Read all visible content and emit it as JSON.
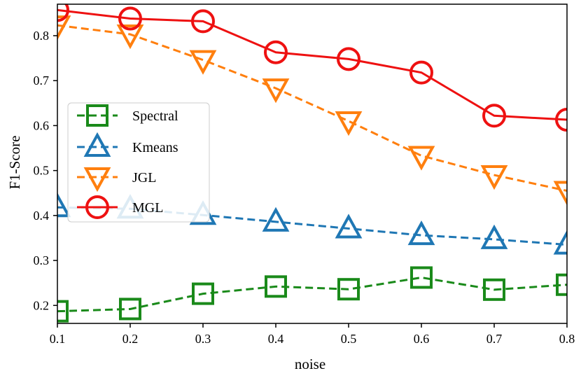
{
  "chart_data": {
    "type": "line",
    "title": "",
    "xlabel": "noise",
    "ylabel": "F1-Score",
    "x": [
      0.1,
      0.2,
      0.3,
      0.4,
      0.5,
      0.6,
      0.7,
      0.8
    ],
    "xlim": [
      0.1,
      0.8
    ],
    "ylim": [
      0.16,
      0.87
    ],
    "xticks": [
      "0.1",
      "0.2",
      "0.3",
      "0.4",
      "0.5",
      "0.6",
      "0.7",
      "0.8"
    ],
    "yticks": [
      "0.2",
      "0.3",
      "0.4",
      "0.5",
      "0.6",
      "0.7",
      "0.8"
    ],
    "ytick_values": [
      0.2,
      0.3,
      0.4,
      0.5,
      0.6,
      0.7,
      0.8
    ],
    "grid": false,
    "legend_position": "center-left",
    "series": [
      {
        "name": "Spectral",
        "color": "#1a8a1a",
        "marker": "square",
        "linestyle": "dashed",
        "values": [
          0.187,
          0.192,
          0.226,
          0.242,
          0.236,
          0.262,
          0.235,
          0.246
        ]
      },
      {
        "name": "Kmeans",
        "color": "#1f77b4",
        "marker": "triangle-up",
        "linestyle": "dashed",
        "values": [
          0.418,
          0.415,
          0.401,
          0.386,
          0.371,
          0.356,
          0.347,
          0.335
        ]
      },
      {
        "name": "JGL",
        "color": "#ff7f0e",
        "marker": "triangle-down",
        "linestyle": "dashed",
        "values": [
          0.823,
          0.803,
          0.746,
          0.683,
          0.61,
          0.533,
          0.49,
          0.455
        ]
      },
      {
        "name": "MGL",
        "color": "#ee1111",
        "marker": "circle",
        "linestyle": "solid",
        "values": [
          0.857,
          0.838,
          0.832,
          0.763,
          0.748,
          0.718,
          0.622,
          0.613
        ]
      }
    ]
  }
}
